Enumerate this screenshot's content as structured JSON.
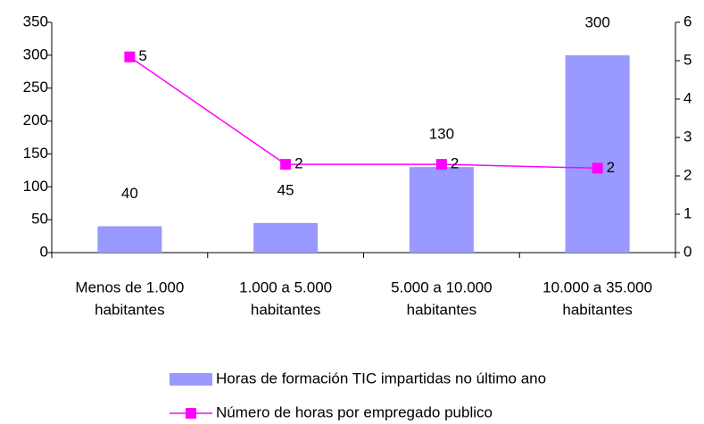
{
  "chart_data": {
    "type": "bar_line",
    "categories": [
      [
        "Menos de 1.000",
        "habitantes"
      ],
      [
        "1.000 a 5.000",
        "habitantes"
      ],
      [
        "5.000  a 10.000",
        "habitantes"
      ],
      [
        "10.000 a 35.000",
        "habitantes"
      ]
    ],
    "series": [
      {
        "name": "Horas de formación TIC impartidas no último ano",
        "color": "#9999ff",
        "type": "bar",
        "values": [
          40,
          45,
          130,
          300
        ]
      },
      {
        "name": "Número de horas por empregado publico",
        "color": "#ff00ff",
        "type": "line",
        "axis": "y2",
        "values": [
          5.1,
          2.3,
          2.3,
          2.2
        ],
        "value_labels": [
          "5",
          "2",
          "2",
          "2"
        ]
      }
    ],
    "ylim": [
      0,
      350
    ],
    "yticks": [
      0,
      50,
      100,
      150,
      200,
      250,
      300,
      350
    ],
    "y2lim": [
      0,
      6
    ],
    "y2ticks": [
      0,
      1,
      2,
      3,
      4,
      5,
      6
    ],
    "legend": "bottom"
  }
}
